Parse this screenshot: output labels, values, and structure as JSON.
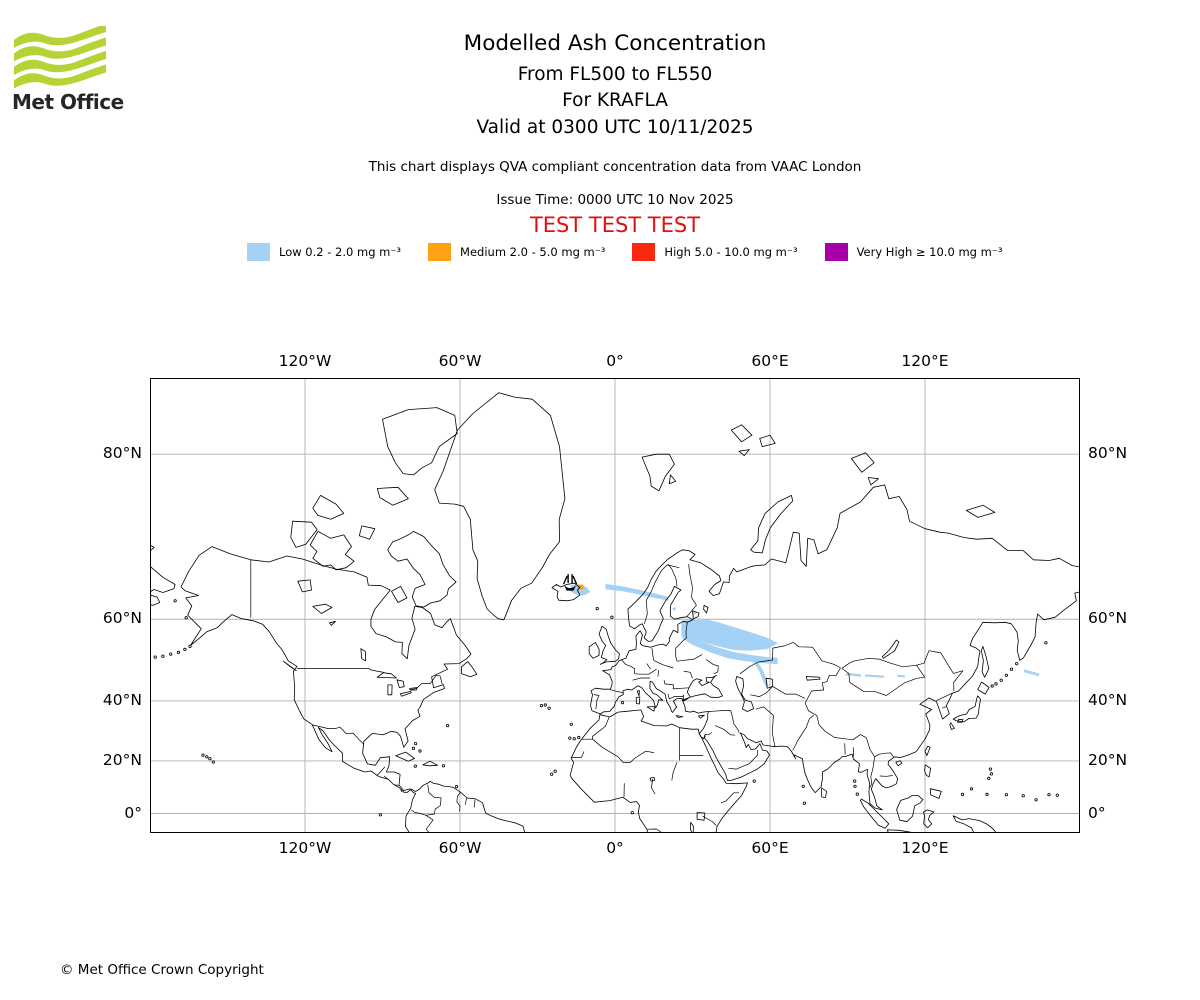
{
  "header": {
    "logo_text": "Met Office",
    "logo_wave_color": "#b5d334",
    "title": "Modelled Ash Concentration",
    "subtitle1": "From FL500 to FL550",
    "subtitle2": "For KRAFLA",
    "subtitle3": "Valid at 0300 UTC 10/11/2025",
    "description": "This chart displays QVA compliant concentration data from VAAC London",
    "issue_time": "Issue Time: 0000 UTC 10 Nov 2025",
    "test_banner": "TEST TEST TEST",
    "test_color": "#dd1111"
  },
  "legend": {
    "items": [
      {
        "id": "low",
        "label": "Low 0.2 - 2.0 mg m⁻³",
        "color": "#a5d2f4"
      },
      {
        "id": "medium",
        "label": "Medium 2.0 - 5.0 mg m⁻³",
        "color": "#ffa113"
      },
      {
        "id": "high",
        "label": "High 5.0 - 10.0 mg m⁻³",
        "color": "#f8290f"
      },
      {
        "id": "very_high",
        "label": "Very High ≥ 10.0 mg m⁻³",
        "color": "#a800a8"
      }
    ]
  },
  "map": {
    "grid_color": "#b0b0b0",
    "x_ticks": [
      {
        "lon": -120,
        "label": "120°W"
      },
      {
        "lon": -60,
        "label": "60°W"
      },
      {
        "lon": 0,
        "label": "0°"
      },
      {
        "lon": 60,
        "label": "60°E"
      },
      {
        "lon": 120,
        "label": "120°E"
      }
    ],
    "y_ticks": [
      {
        "lat": 80,
        "label": "80°N"
      },
      {
        "lat": 60,
        "label": "60°N"
      },
      {
        "lat": 40,
        "label": "40°N"
      },
      {
        "lat": 20,
        "label": "20°N"
      },
      {
        "lat": 0,
        "label": "0°"
      }
    ],
    "volcano": {
      "name": "KRAFLA",
      "lon": -17.4,
      "lat": 66.0
    },
    "ash_plumes": [
      {
        "level": "low",
        "name": "iceland-patch",
        "points": [
          [
            -17.3,
            65.1
          ],
          [
            -17,
            65.9
          ],
          [
            -14.5,
            66.1
          ],
          [
            -11.5,
            65.7
          ],
          [
            -9.8,
            64.9
          ],
          [
            -12,
            64.4
          ],
          [
            -15,
            64.5
          ]
        ]
      },
      {
        "level": "low",
        "name": "norwegian-sea-streak",
        "points": [
          [
            -3.5,
            66.1
          ],
          [
            3,
            65.7
          ],
          [
            9,
            65.2
          ],
          [
            15,
            64.6
          ],
          [
            20.5,
            64
          ],
          [
            20.5,
            63.5
          ],
          [
            15,
            64
          ],
          [
            9,
            64.6
          ],
          [
            3,
            65.1
          ],
          [
            -3.5,
            65.4
          ]
        ]
      },
      {
        "level": "low",
        "name": "nw-russia-band-upper",
        "points": [
          [
            25.9,
            59.6
          ],
          [
            32.9,
            60.1
          ],
          [
            39.5,
            59.4
          ],
          [
            45.7,
            58.4
          ],
          [
            52.3,
            57.3
          ],
          [
            58.8,
            56.1
          ],
          [
            62.7,
            55
          ],
          [
            58.8,
            53.8
          ],
          [
            52.3,
            53.4
          ],
          [
            45.7,
            53.6
          ],
          [
            39.5,
            54.5
          ],
          [
            32.9,
            55.6
          ],
          [
            25.9,
            56.5
          ]
        ]
      },
      {
        "level": "low",
        "name": "nw-russia-band-lower",
        "points": [
          [
            26.3,
            56.9
          ],
          [
            32.9,
            55.4
          ],
          [
            39.5,
            54
          ],
          [
            45.7,
            52.9
          ],
          [
            52.3,
            52.2
          ],
          [
            58.8,
            51.7
          ],
          [
            62.7,
            51.5
          ],
          [
            62.7,
            50.2
          ],
          [
            56.1,
            50.5
          ],
          [
            49.5,
            51
          ],
          [
            43.3,
            51.7
          ],
          [
            36.8,
            53.1
          ],
          [
            30.2,
            54.7
          ],
          [
            26.3,
            56.1
          ]
        ]
      },
      {
        "level": "low",
        "name": "kazakhstan-tail",
        "points": [
          [
            52.3,
            52.2
          ],
          [
            55.4,
            50.2
          ],
          [
            57.3,
            48.2
          ],
          [
            58.4,
            46.1
          ],
          [
            59.2,
            44.4
          ],
          [
            58.4,
            44.4
          ],
          [
            57.3,
            46.1
          ],
          [
            56.1,
            48.2
          ],
          [
            54.2,
            50.3
          ],
          [
            51.1,
            51.9
          ]
        ]
      },
      {
        "level": "low",
        "name": "finland-speck-1",
        "points": [
          [
            22.5,
            62.1
          ],
          [
            23.3,
            62.1
          ],
          [
            23.3,
            61.8
          ],
          [
            22.5,
            61.8
          ]
        ]
      },
      {
        "level": "low",
        "name": "finland-speck-2",
        "points": [
          [
            30.3,
            61.3
          ],
          [
            31.1,
            61.3
          ],
          [
            31.1,
            61
          ],
          [
            30.3,
            61
          ]
        ]
      },
      {
        "level": "low",
        "name": "mongolia-dash-1",
        "points": [
          [
            89.5,
            47.7
          ],
          [
            95,
            47.4
          ],
          [
            95,
            47
          ],
          [
            89.5,
            47.3
          ]
        ]
      },
      {
        "level": "low",
        "name": "mongolia-dash-2",
        "points": [
          [
            97,
            47.3
          ],
          [
            104,
            47
          ],
          [
            104,
            46.7
          ],
          [
            97,
            47
          ]
        ]
      },
      {
        "level": "low",
        "name": "mongolia-dash-3",
        "points": [
          [
            109.5,
            47.2
          ],
          [
            112,
            47.1
          ],
          [
            112,
            46.8
          ],
          [
            109.5,
            46.9
          ]
        ]
      },
      {
        "level": "low",
        "name": "okhotsk-dash",
        "points": [
          [
            158.5,
            48.6
          ],
          [
            164,
            47.6
          ],
          [
            164,
            47.1
          ],
          [
            158.5,
            48.1
          ]
        ]
      },
      {
        "level": "medium",
        "name": "source-cell",
        "points": [
          [
            -14.3,
            66
          ],
          [
            -12.4,
            66
          ],
          [
            -12.4,
            65.4
          ],
          [
            -14.3,
            65.4
          ]
        ]
      }
    ]
  },
  "footer": {
    "copyright": "© Met Office Crown Copyright"
  }
}
